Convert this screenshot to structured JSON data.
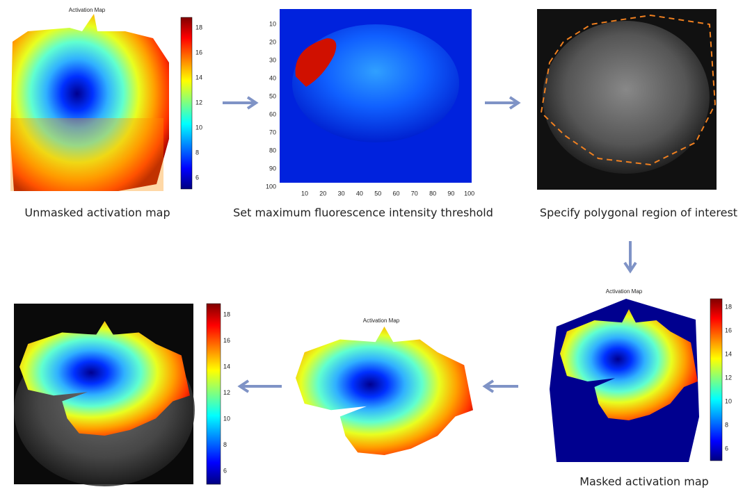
{
  "panels": [
    {
      "title": "Activation Map",
      "colorbar_ticks": [
        18,
        16,
        14,
        12,
        10,
        8,
        6
      ],
      "caption": "Unmasked activation map"
    },
    {
      "yticks": [
        10,
        20,
        30,
        40,
        50,
        60,
        70,
        80,
        90,
        100
      ],
      "xticks": [
        10,
        20,
        30,
        40,
        50,
        60,
        70,
        80,
        90,
        100
      ],
      "caption": "Set maximum fluorescence intensity threshold"
    },
    {
      "caption": "Specify polygonal region of interest"
    },
    {
      "title": "Activation Map",
      "colorbar_ticks": [
        18,
        16,
        14,
        12,
        10,
        8,
        6
      ],
      "caption": "Masked activation map"
    },
    {
      "title": "Activation Map"
    },
    {
      "colorbar_ticks": [
        18,
        16,
        14,
        12,
        10,
        8,
        6
      ]
    }
  ]
}
